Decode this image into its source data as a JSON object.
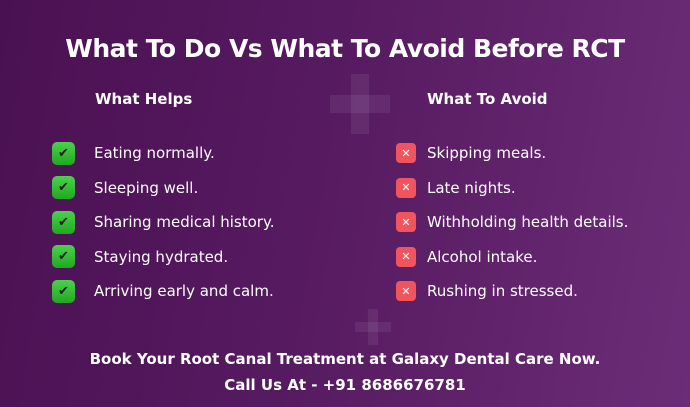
{
  "title": "What To Do Vs What To Avoid Before RCT",
  "helps": {
    "heading": "What Helps",
    "items": [
      "Eating normally.",
      "Sleeping well.",
      "Sharing medical history.",
      "Staying hydrated.",
      "Arriving early and calm."
    ],
    "icon": "check-icon",
    "color": "#2fbf2f"
  },
  "avoid": {
    "heading": "What To Avoid",
    "items": [
      "Skipping meals.",
      "Late nights.",
      "Withholding health details.",
      "Alcohol intake.",
      "Rushing in stressed."
    ],
    "icon": "x-icon",
    "color": "#f0555e"
  },
  "footer": {
    "line1": "Book Your Root Canal Treatment at Galaxy Dental Care Now.",
    "line2": "Call Us At - +91 8686676781"
  },
  "background": "#561a60"
}
